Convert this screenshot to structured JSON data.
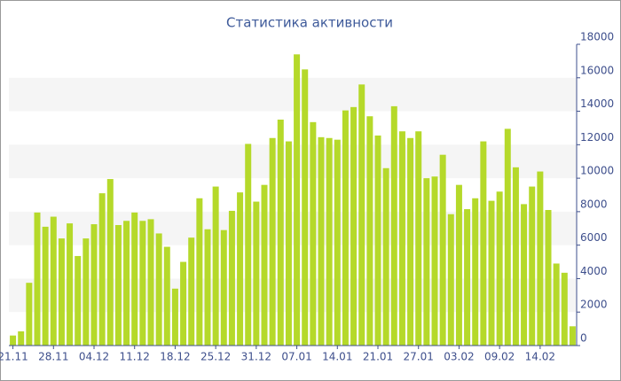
{
  "chart_data": {
    "type": "bar",
    "title": "Статистика активности",
    "categories": [
      "21.11",
      null,
      null,
      null,
      null,
      "28.11",
      null,
      null,
      null,
      null,
      "04.12",
      null,
      null,
      null,
      null,
      "11.12",
      null,
      null,
      null,
      null,
      "18.12",
      null,
      null,
      null,
      null,
      "25.12",
      null,
      null,
      null,
      null,
      "31.12",
      null,
      null,
      null,
      null,
      "07.01",
      null,
      null,
      null,
      null,
      "14.01",
      null,
      null,
      null,
      null,
      "21.01",
      null,
      null,
      null,
      null,
      "27.01",
      null,
      null,
      null,
      null,
      "03.02",
      null,
      null,
      null,
      null,
      "09.02",
      null,
      null,
      null,
      null,
      "14.02",
      null,
      null,
      null,
      null
    ],
    "values": [
      600,
      850,
      3750,
      7950,
      7100,
      7700,
      6400,
      7300,
      5350,
      6400,
      7250,
      9100,
      9950,
      7200,
      7450,
      7950,
      7450,
      7550,
      6700,
      5900,
      3400,
      5000,
      6450,
      8800,
      6950,
      9500,
      6900,
      8050,
      9150,
      12050,
      8600,
      9600,
      12400,
      13500,
      12200,
      17400,
      16500,
      13350,
      12450,
      12400,
      12300,
      14050,
      14250,
      15600,
      13700,
      12550,
      10600,
      14300,
      12800,
      12400,
      12800,
      10000,
      10100,
      11400,
      7850,
      9600,
      8150,
      8800,
      12200,
      8650,
      9200,
      12950,
      10650,
      8450,
      9500,
      10400,
      8100,
      4900,
      4350,
      1150
    ],
    "color": "#b5d92a",
    "ylim": [
      0,
      18000
    ],
    "yticks": [
      0,
      2000,
      4000,
      6000,
      8000,
      10000,
      12000,
      14000,
      16000,
      18000
    ],
    "grid": true
  }
}
